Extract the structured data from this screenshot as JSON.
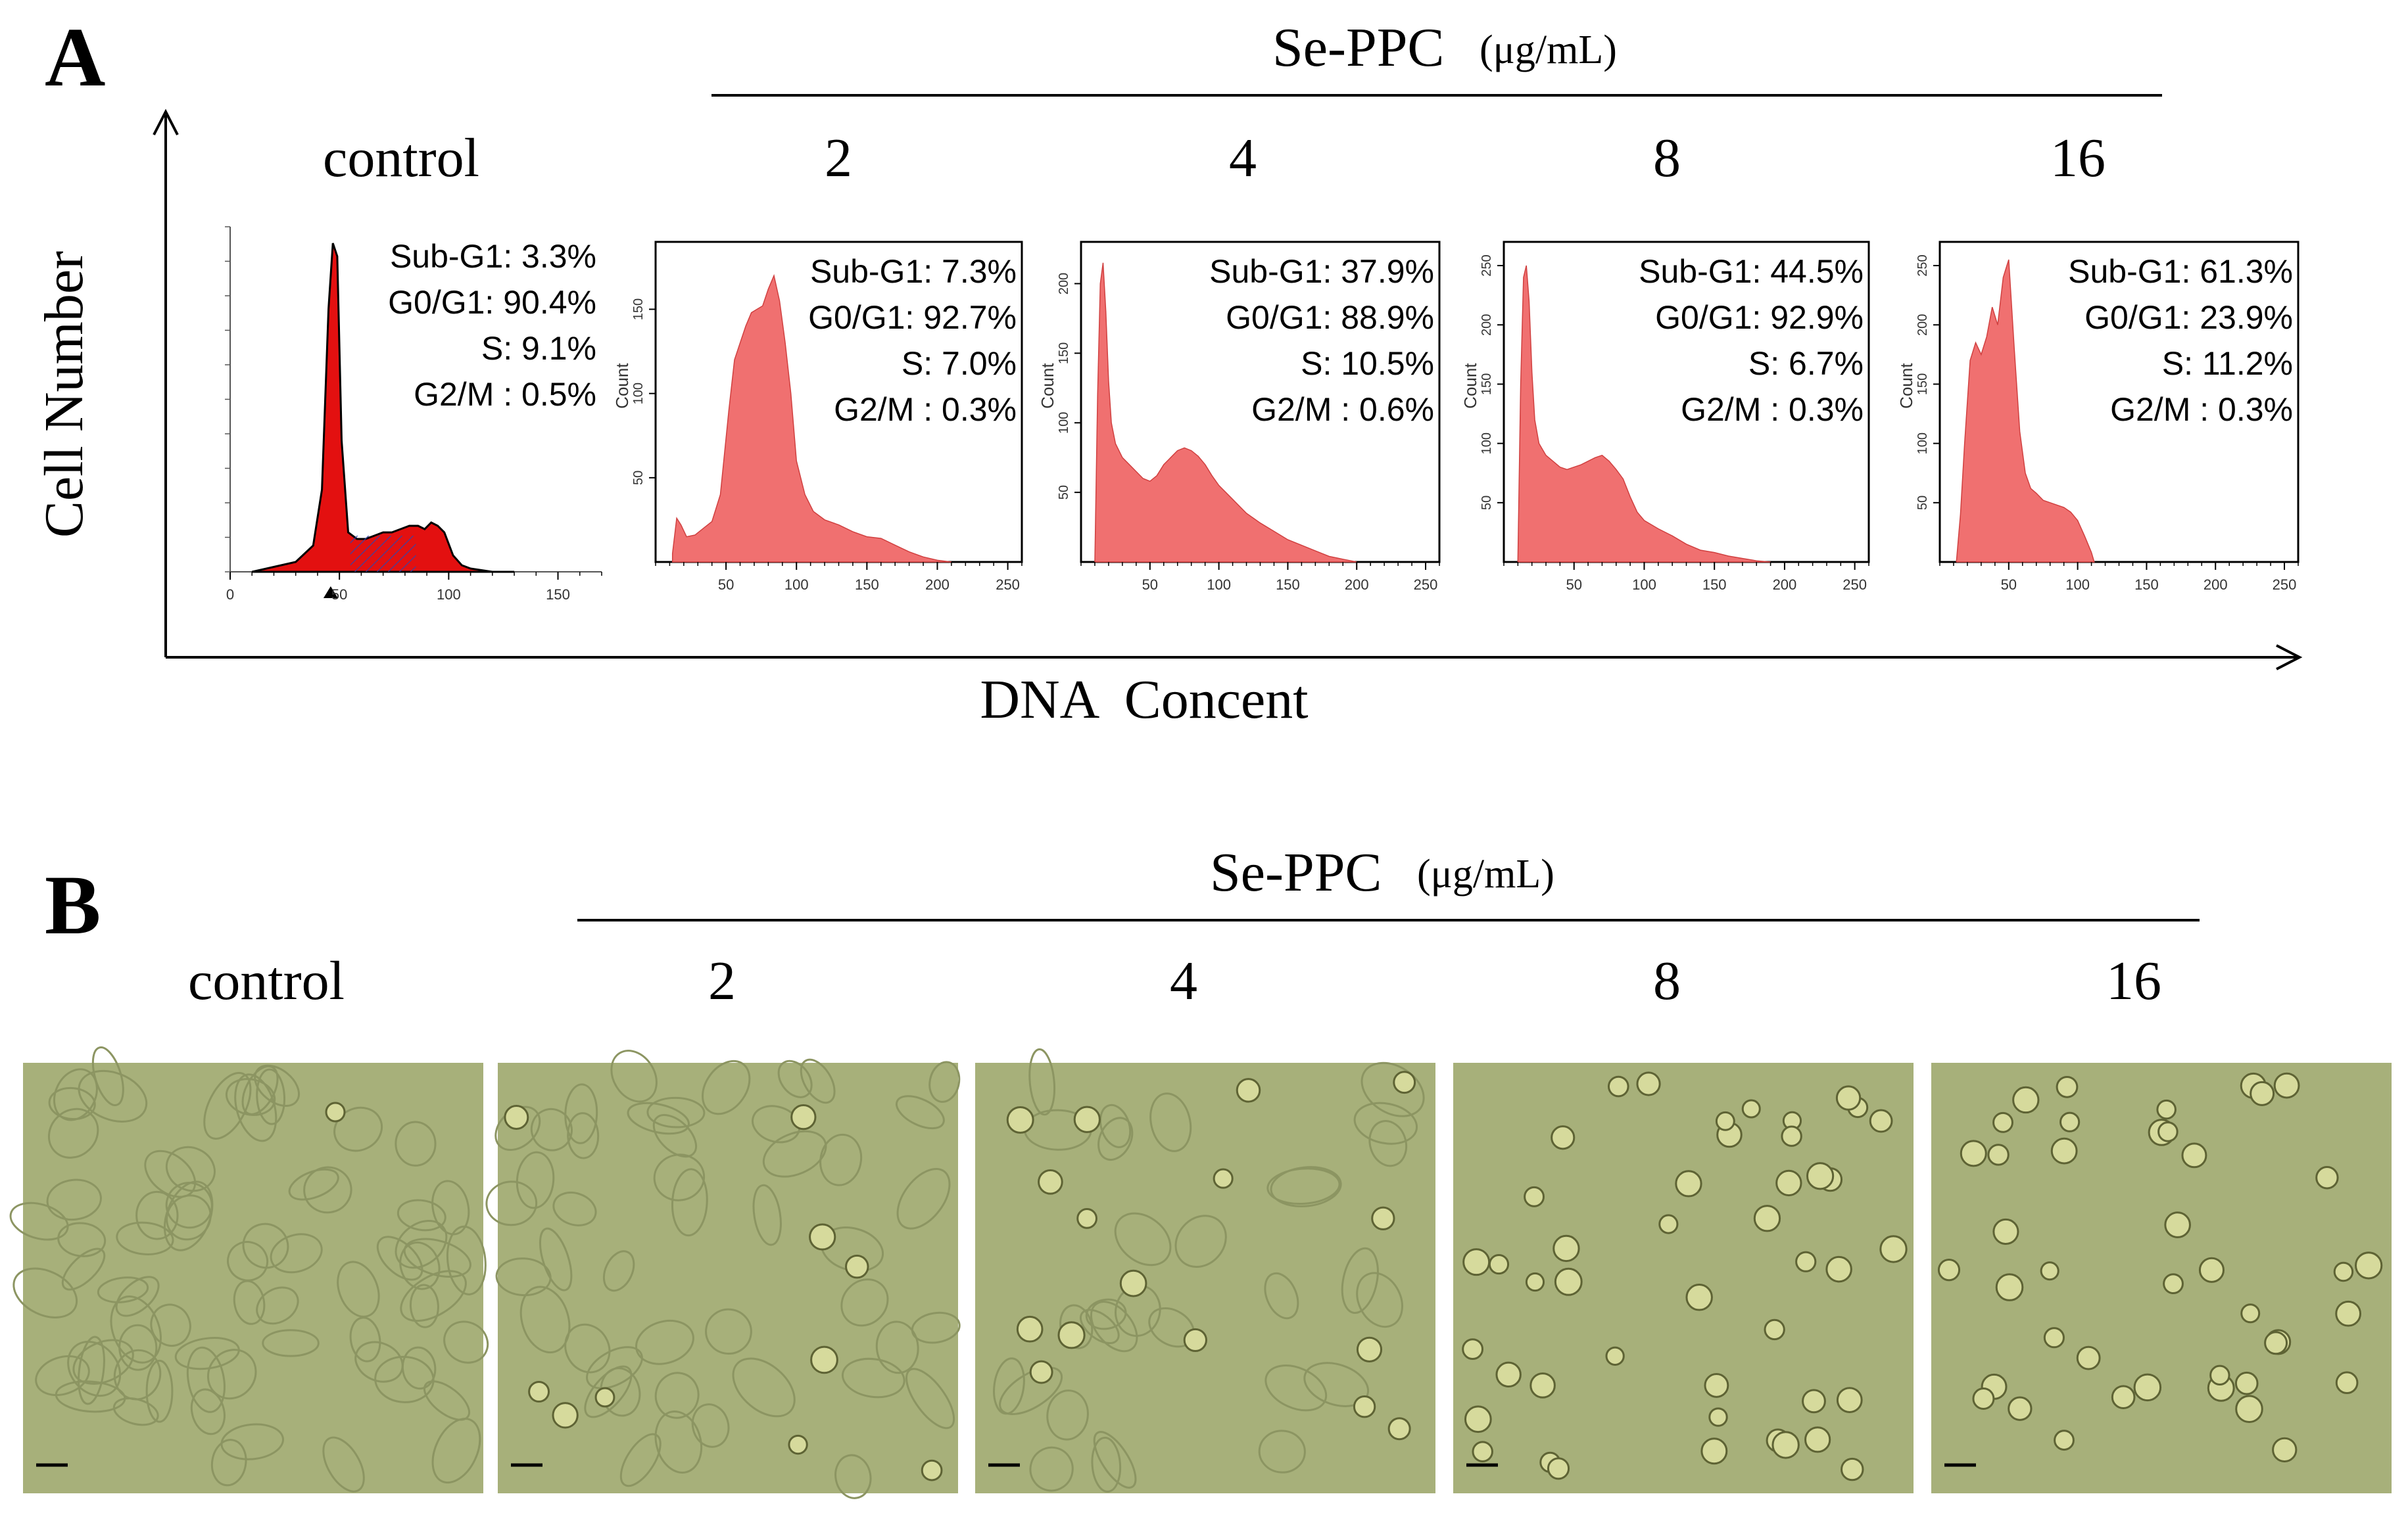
{
  "figure": {
    "panel_a_label": "A",
    "panel_b_label": "B",
    "treatment_title": "Se-PPC",
    "treatment_unit": "(μg/mL)",
    "group_labels": [
      "control",
      "2",
      "4",
      "8",
      "16"
    ],
    "y_axis_label": "Cell Number",
    "x_axis_label": "DNA  Concent"
  },
  "chart_data": [
    {
      "type": "area",
      "group": "control",
      "ylabel": "",
      "xlabel": "",
      "x_ticks": [
        "0",
        "50",
        "100",
        "150"
      ],
      "xlim": [
        0,
        170
      ],
      "stats": [
        [
          "Sub-G1:",
          "3.3%"
        ],
        [
          "G0/G1:",
          "90.4%"
        ],
        [
          "S:",
          "9.1%"
        ],
        [
          "G2/M :",
          "0.5%"
        ]
      ],
      "series": [
        {
          "name": "DNA histogram",
          "x": [
            10,
            30,
            38,
            42,
            45,
            47,
            49,
            51,
            54,
            58,
            62,
            66,
            70,
            74,
            78,
            82,
            86,
            89,
            92,
            95,
            98,
            102,
            106,
            110,
            120,
            130
          ],
          "y": [
            0,
            3,
            8,
            25,
            80,
            100,
            96,
            40,
            12,
            10,
            10,
            11,
            12,
            12,
            13,
            14,
            14,
            13,
            15,
            14,
            12,
            5,
            2,
            1,
            0,
            0
          ]
        }
      ]
    },
    {
      "type": "area",
      "group": "2",
      "ylabel": "Count",
      "xlabel": "",
      "x_ticks": [
        "50",
        "100",
        "150",
        "200",
        "250"
      ],
      "xlim": [
        0,
        260
      ],
      "y_ticks": [
        "50",
        "100",
        "150"
      ],
      "ylim": [
        0,
        190
      ],
      "stats": [
        [
          "Sub-G1:",
          "7.3%"
        ],
        [
          "G0/G1:",
          "92.7%"
        ],
        [
          "S:",
          "7.0%"
        ],
        [
          "G2/M :",
          "0.3%"
        ]
      ],
      "series": [
        {
          "name": "DNA histogram",
          "x": [
            12,
            15,
            18,
            22,
            28,
            34,
            40,
            46,
            52,
            56,
            60,
            64,
            68,
            72,
            76,
            80,
            84,
            88,
            92,
            96,
            100,
            106,
            112,
            120,
            130,
            140,
            150,
            160,
            170,
            180,
            190,
            200,
            210
          ],
          "y": [
            5,
            26,
            22,
            15,
            16,
            20,
            24,
            40,
            90,
            120,
            130,
            140,
            148,
            150,
            152,
            162,
            170,
            155,
            130,
            100,
            60,
            40,
            30,
            25,
            22,
            18,
            15,
            14,
            10,
            6,
            3,
            1,
            0
          ]
        }
      ]
    },
    {
      "type": "area",
      "group": "4",
      "ylabel": "Count",
      "xlabel": "",
      "x_ticks": [
        "50",
        "100",
        "150",
        "200",
        "250"
      ],
      "xlim": [
        0,
        260
      ],
      "y_ticks": [
        "50",
        "100",
        "150",
        "200"
      ],
      "ylim": [
        0,
        230
      ],
      "stats": [
        [
          "Sub-G1:",
          "37.9%"
        ],
        [
          "G0/G1:",
          "88.9%"
        ],
        [
          "S:",
          "10.5%"
        ],
        [
          "G2/M :",
          "0.6%"
        ]
      ],
      "series": [
        {
          "name": "DNA histogram",
          "x": [
            10,
            12,
            14,
            16,
            18,
            20,
            22,
            25,
            30,
            35,
            40,
            45,
            50,
            55,
            60,
            65,
            70,
            75,
            80,
            85,
            90,
            95,
            100,
            110,
            120,
            130,
            140,
            150,
            160,
            170,
            180,
            190,
            200
          ],
          "y": [
            0,
            120,
            200,
            215,
            180,
            130,
            100,
            85,
            75,
            70,
            65,
            60,
            58,
            62,
            70,
            75,
            80,
            82,
            80,
            76,
            70,
            62,
            55,
            45,
            35,
            28,
            22,
            16,
            12,
            8,
            4,
            2,
            0
          ]
        }
      ]
    },
    {
      "type": "area",
      "group": "8",
      "ylabel": "Count",
      "xlabel": "",
      "x_ticks": [
        "50",
        "100",
        "150",
        "200",
        "250"
      ],
      "xlim": [
        0,
        260
      ],
      "y_ticks": [
        "50",
        "100",
        "150",
        "200",
        "250"
      ],
      "ylim": [
        0,
        270
      ],
      "stats": [
        [
          "Sub-G1:",
          "44.5%"
        ],
        [
          "G0/G1:",
          "92.9%"
        ],
        [
          "S:",
          "6.7%"
        ],
        [
          "G2/M :",
          "0.3%"
        ]
      ],
      "series": [
        {
          "name": "DNA histogram",
          "x": [
            10,
            12,
            14,
            16,
            18,
            20,
            22,
            25,
            30,
            35,
            40,
            45,
            50,
            55,
            60,
            65,
            70,
            75,
            80,
            85,
            90,
            95,
            100,
            110,
            120,
            130,
            140,
            150,
            160,
            170,
            180,
            190
          ],
          "y": [
            0,
            150,
            240,
            250,
            220,
            160,
            120,
            100,
            90,
            85,
            80,
            78,
            80,
            82,
            85,
            88,
            90,
            85,
            78,
            70,
            55,
            42,
            35,
            28,
            22,
            15,
            10,
            8,
            5,
            3,
            1,
            0
          ]
        }
      ]
    },
    {
      "type": "area",
      "group": "16",
      "ylabel": "Count",
      "xlabel": "",
      "x_ticks": [
        "50",
        "100",
        "150",
        "200",
        "250"
      ],
      "xlim": [
        0,
        260
      ],
      "y_ticks": [
        "50",
        "100",
        "150",
        "200",
        "250"
      ],
      "ylim": [
        0,
        270
      ],
      "stats": [
        [
          "Sub-G1:",
          "61.3%"
        ],
        [
          "G0/G1:",
          "23.9%"
        ],
        [
          "S:",
          "11.2%"
        ],
        [
          "G2/M :",
          "0.3%"
        ]
      ],
      "series": [
        {
          "name": "DNA histogram",
          "x": [
            12,
            15,
            18,
            22,
            26,
            30,
            34,
            38,
            42,
            46,
            50,
            54,
            58,
            62,
            66,
            70,
            75,
            80,
            85,
            90,
            95,
            100,
            105,
            110,
            112
          ],
          "y": [
            0,
            40,
            100,
            170,
            185,
            175,
            190,
            215,
            200,
            240,
            255,
            180,
            110,
            75,
            62,
            58,
            52,
            50,
            48,
            46,
            42,
            35,
            22,
            8,
            0
          ]
        }
      ]
    }
  ]
}
